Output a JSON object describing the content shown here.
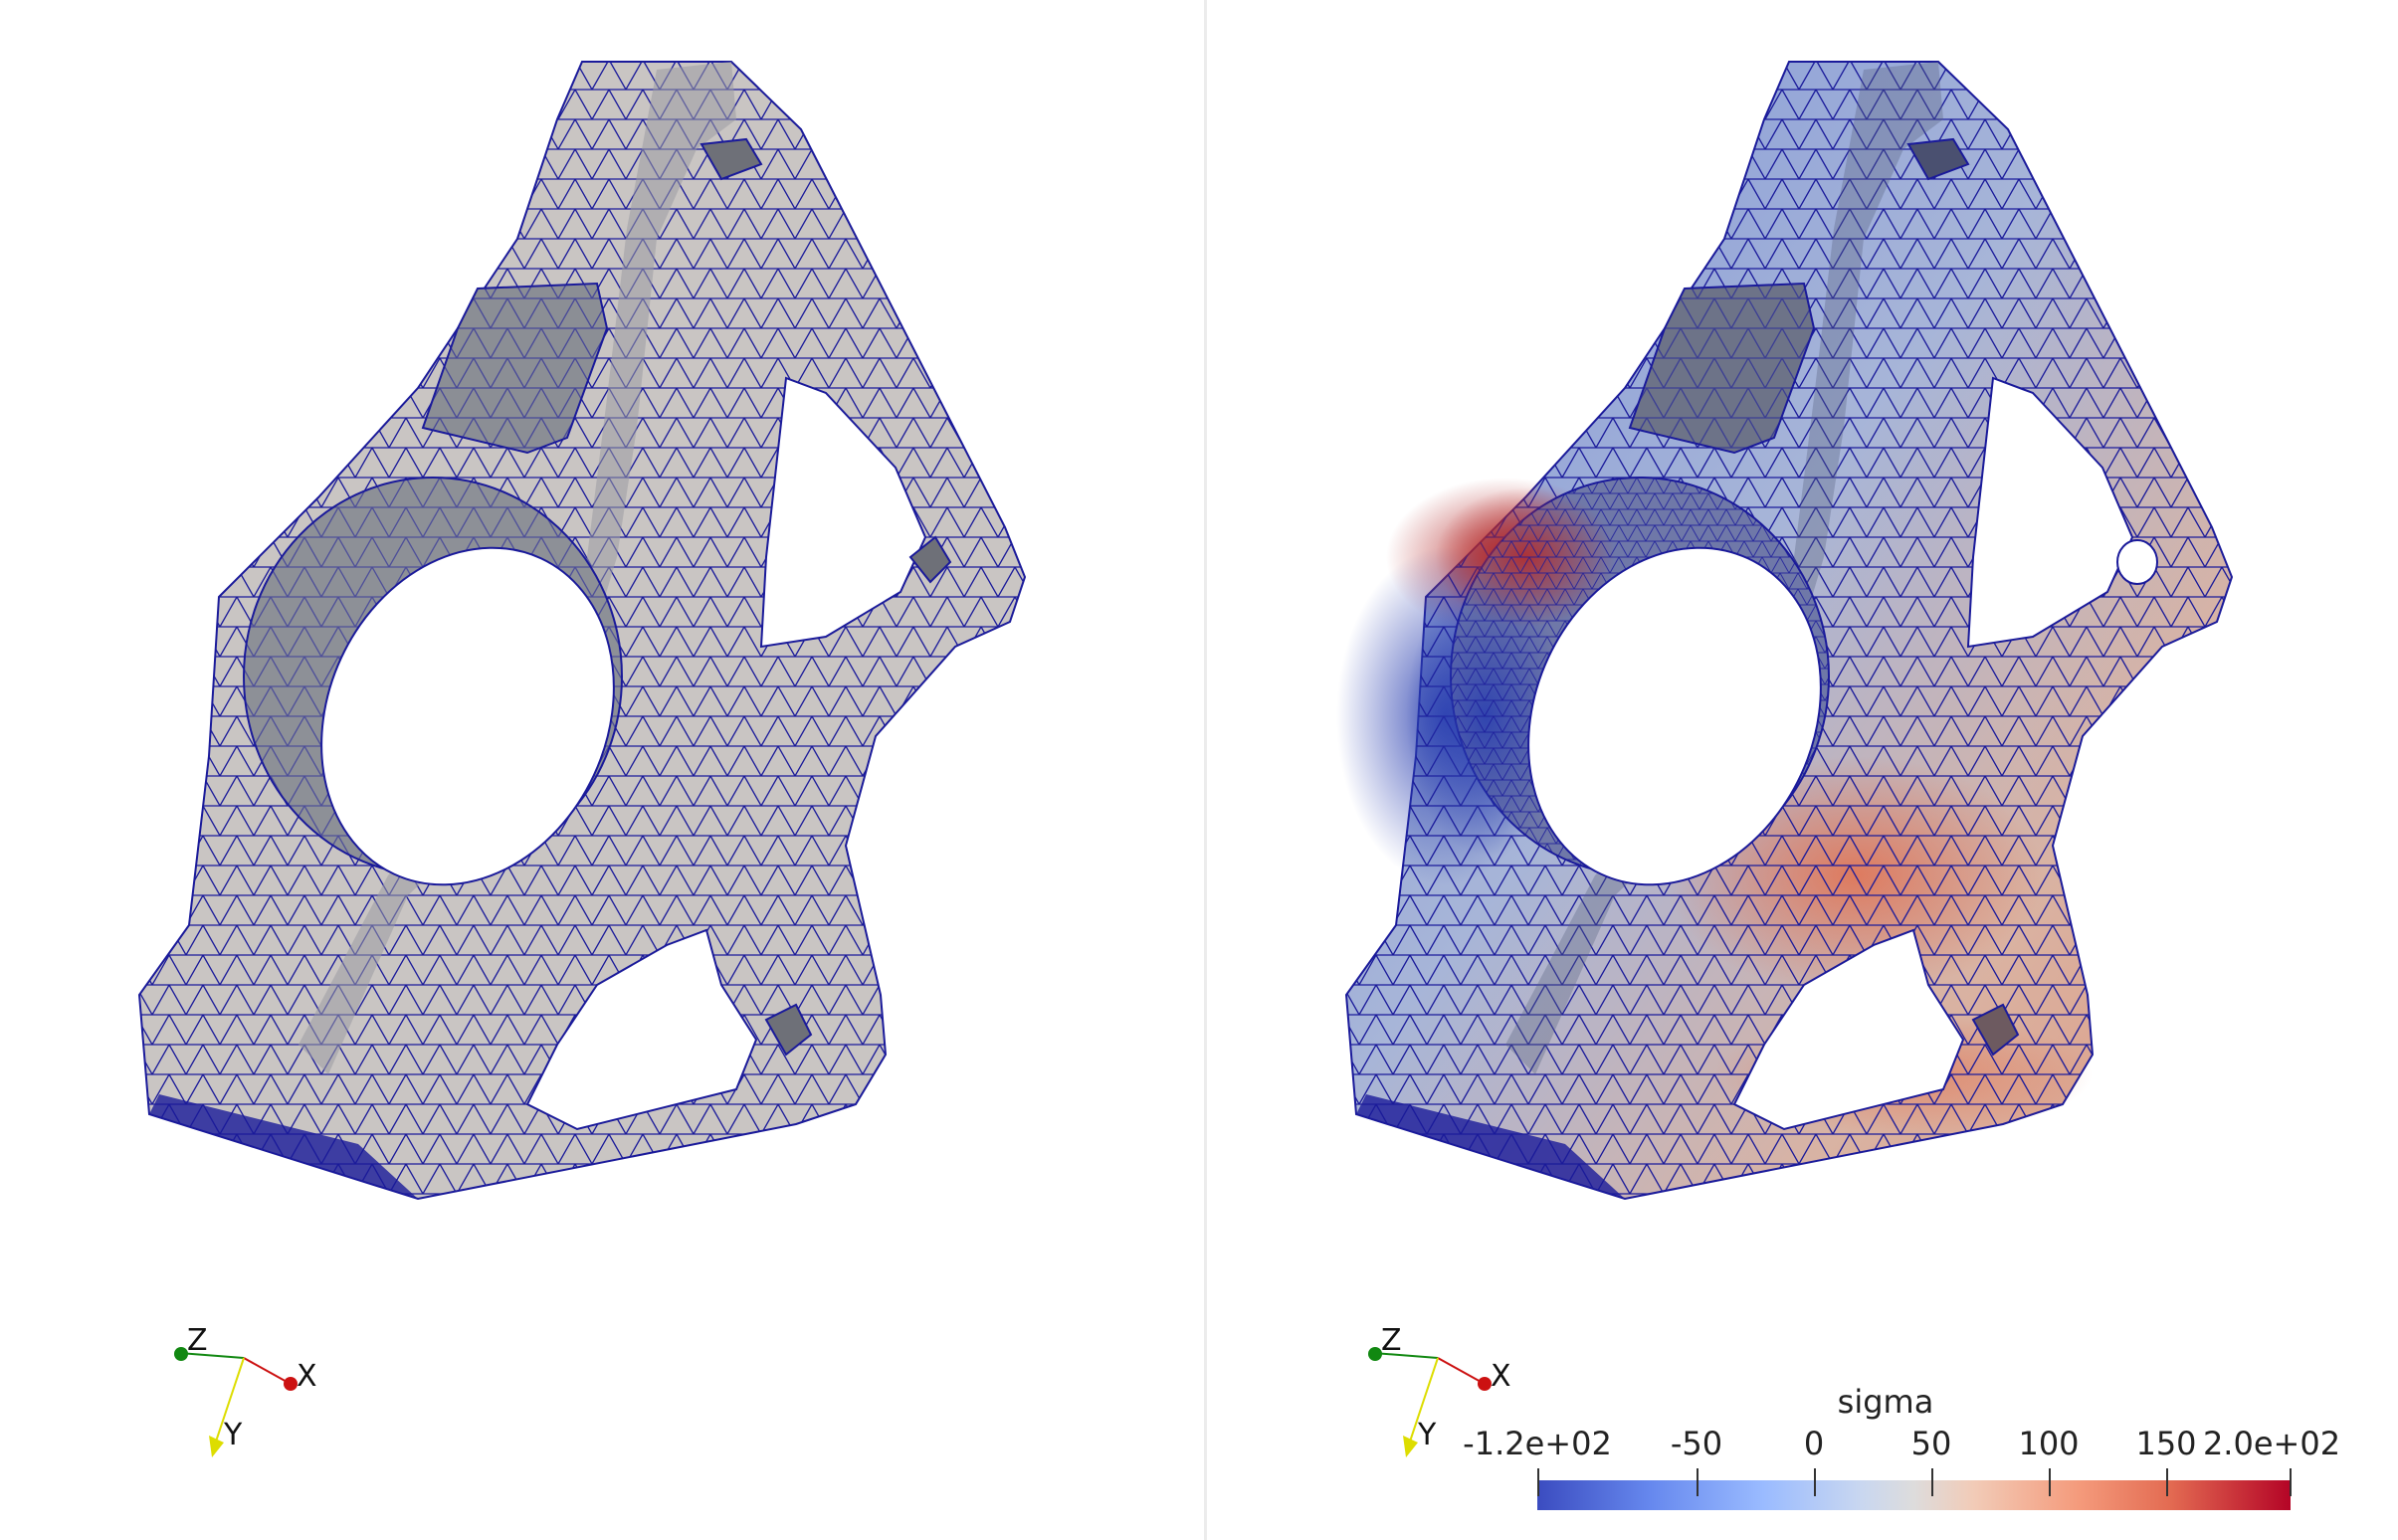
{
  "left_view": {
    "name": "mesh-view"
  },
  "right_view": {
    "name": "stress-view"
  },
  "orientation_axes": {
    "x": "X",
    "y": "Y",
    "z": "Z"
  },
  "scalar_bar": {
    "title": "sigma",
    "ticks": [
      "-1.2e+02",
      "-50",
      "0",
      "50",
      "100",
      "150",
      "2.0e+02"
    ],
    "range": [
      -120,
      200
    ],
    "colormap": [
      "#3b4cc0",
      "#dddcdc",
      "#b40426"
    ]
  },
  "colors": {
    "mesh_edges": "#1a1a9a",
    "surface": "#c8c4c4",
    "surface_dark": "#8a8d94",
    "axis_x": "#cc1111",
    "axis_y": "#dddd00",
    "axis_z": "#118811"
  }
}
